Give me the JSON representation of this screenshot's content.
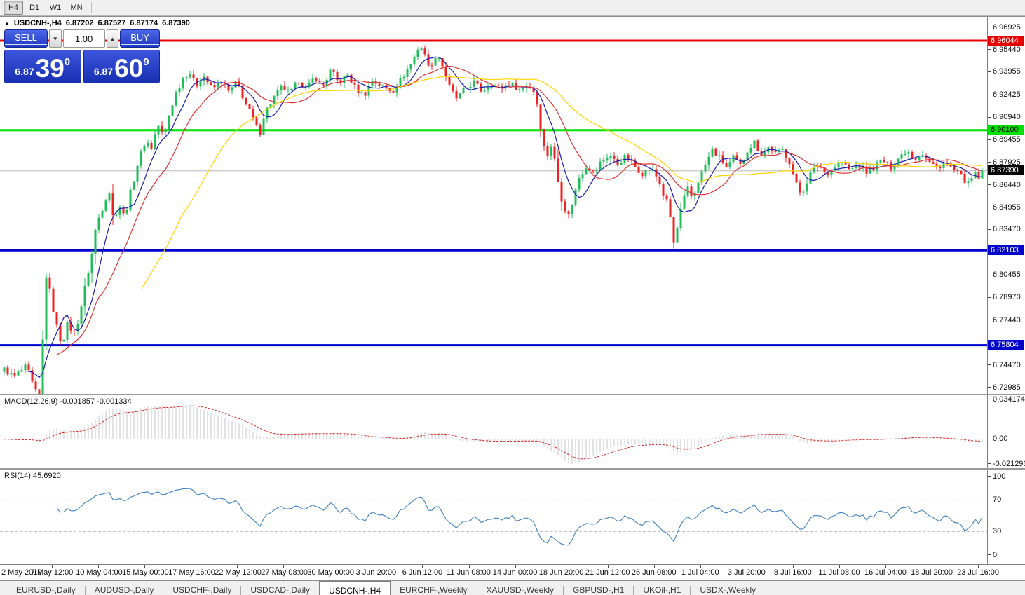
{
  "toolbar": {
    "timeframes": [
      "H4",
      "D1",
      "W1",
      "MN"
    ],
    "active": "H4"
  },
  "chart": {
    "title": {
      "symbol_tf": "USDCNH-,H4",
      "open": "6.87202",
      "high": "6.87527",
      "low": "6.87174",
      "close": "6.87390"
    },
    "trade_panel": {
      "sell_label": "SELL",
      "buy_label": "BUY",
      "volume": "1.00",
      "sell_price": {
        "prefix": "6.87",
        "main": "39",
        "sup": "0"
      },
      "buy_price": {
        "prefix": "6.87",
        "main": "60",
        "sup": "9"
      }
    },
    "price_axis": {
      "ticks": [
        "6.96925",
        "6.95440",
        "6.93955",
        "6.92425",
        "6.90940",
        "6.89455",
        "6.87925",
        "6.86440",
        "6.84955",
        "6.83470",
        "6.80455",
        "6.78970",
        "6.77440",
        "6.74470",
        "6.72985"
      ],
      "levels": [
        {
          "text": "6.96044",
          "price": 6.96044,
          "bg": "#e60000",
          "fg": "#ffffff"
        },
        {
          "text": "6.90100",
          "price": 6.901,
          "bg": "#00e000",
          "fg": "#000000"
        },
        {
          "text": "6.82103",
          "price": 6.82103,
          "bg": "#0000cc",
          "fg": "#ffffff"
        },
        {
          "text": "6.75804",
          "price": 6.75804,
          "bg": "#0000cc",
          "fg": "#ffffff"
        }
      ],
      "current": {
        "text": "6.87390",
        "price": 6.8739,
        "bg": "#000000",
        "fg": "#ffffff"
      }
    }
  },
  "indicators": {
    "macd": {
      "label": "MACD(12,26,9)",
      "values": "-0.001857 -0.001334",
      "axis": [
        {
          "text": "0.034174",
          "v": 0.034174
        },
        {
          "text": "0.00",
          "v": 0
        },
        {
          "text": "-0.021296",
          "v": -0.021296
        }
      ],
      "max": 0.034174,
      "min": -0.021296
    },
    "rsi": {
      "label": "RSI(14)",
      "value": "45.6920",
      "axis": [
        {
          "text": "100",
          "v": 100
        },
        {
          "text": "70",
          "v": 70
        },
        {
          "text": "30",
          "v": 30
        },
        {
          "text": "0",
          "v": 0
        }
      ],
      "levels": [
        70,
        30
      ]
    }
  },
  "tabs": {
    "active": "USDCNH-,H4",
    "items": [
      "EURUSD-,Daily",
      "AUDUSD-,Daily",
      "USDCHF-,Daily",
      "USDCAD-,Daily",
      "USDCNH-,H4",
      "EURCHF-,Weekly",
      "XAUUSD-,Weekly",
      "GBPUSD-,H1",
      "UKOil-,H1",
      "USDX-,Weekly"
    ]
  },
  "chart_data": {
    "type": "candlestick",
    "symbol": "USDCNH",
    "timeframe": "H4",
    "current_bar": {
      "open": 6.87202,
      "high": 6.87527,
      "low": 6.87174,
      "close": 6.8739
    },
    "price_range": [
      6.7285,
      6.9735
    ],
    "bars": 280,
    "candle_colors": {
      "up": "#1fbe5a",
      "down": "#ee2222"
    },
    "horizontal_levels": [
      {
        "price": 6.96044,
        "color": "#e60000",
        "width": 3
      },
      {
        "price": 6.901,
        "color": "#00e000",
        "width": 3
      },
      {
        "price": 6.82103,
        "color": "#0000cc",
        "width": 3
      },
      {
        "price": 6.75804,
        "color": "#0000cc",
        "width": 3
      }
    ],
    "current_price_line": {
      "price": 6.8739,
      "color": "#b8b8b8"
    },
    "moving_averages": [
      {
        "period": 7,
        "color": "#1a1ab4"
      },
      {
        "period": 16,
        "color": "#e03030"
      },
      {
        "period": 40,
        "color": "#ffd400"
      }
    ],
    "indicators": [
      {
        "name": "MACD",
        "params": [
          12,
          26,
          9
        ],
        "last_main": -0.001857,
        "last_signal": -0.001334,
        "scale_max": 0.034174,
        "scale_min": -0.021296,
        "histogram_color": "#c4c4c4",
        "signal_color": "#dd2222"
      },
      {
        "name": "RSI",
        "params": [
          14
        ],
        "last": 45.692,
        "levels": [
          30,
          70
        ],
        "line_color": "#3c7fc0"
      }
    ],
    "time_labels": [
      "2 May 2019",
      "7 May 12:00",
      "10 May 04:00",
      "15 May 00:00",
      "17 May 16:00",
      "22 May 12:00",
      "27 May 08:00",
      "30 May 00:00",
      "3 Jun 20:00",
      "6 Jun 12:00",
      "11 Jun 08:00",
      "14 Jun 00:00",
      "18 Jun 20:00",
      "21 Jun 12:00",
      "26 Jun 08:00",
      "1 Jul 04:00",
      "3 Jul 20:00",
      "8 Jul 16:00",
      "11 Jul 08:00",
      "16 Jul 04:00",
      "18 Jul 20:00",
      "23 Jul 16:00"
    ],
    "price_path": [
      [
        0.0,
        6.742
      ],
      [
        0.01,
        6.737
      ],
      [
        0.023,
        6.744
      ],
      [
        0.031,
        6.728
      ],
      [
        0.036,
        6.724
      ],
      [
        0.039,
        6.748
      ],
      [
        0.041,
        6.81
      ],
      [
        0.046,
        6.796
      ],
      [
        0.053,
        6.772
      ],
      [
        0.059,
        6.758
      ],
      [
        0.064,
        6.772
      ],
      [
        0.072,
        6.766
      ],
      [
        0.077,
        6.778
      ],
      [
        0.083,
        6.798
      ],
      [
        0.089,
        6.816
      ],
      [
        0.094,
        6.838
      ],
      [
        0.102,
        6.852
      ],
      [
        0.107,
        6.862
      ],
      [
        0.112,
        6.84
      ],
      [
        0.117,
        6.852
      ],
      [
        0.123,
        6.843
      ],
      [
        0.13,
        6.862
      ],
      [
        0.137,
        6.88
      ],
      [
        0.145,
        6.895
      ],
      [
        0.15,
        6.888
      ],
      [
        0.157,
        6.905
      ],
      [
        0.163,
        6.896
      ],
      [
        0.169,
        6.912
      ],
      [
        0.175,
        6.925
      ],
      [
        0.182,
        6.935
      ],
      [
        0.189,
        6.94
      ],
      [
        0.196,
        6.93
      ],
      [
        0.203,
        6.938
      ],
      [
        0.213,
        6.928
      ],
      [
        0.222,
        6.934
      ],
      [
        0.23,
        6.926
      ],
      [
        0.238,
        6.933
      ],
      [
        0.246,
        6.92
      ],
      [
        0.255,
        6.908
      ],
      [
        0.261,
        6.898
      ],
      [
        0.266,
        6.912
      ],
      [
        0.275,
        6.922
      ],
      [
        0.284,
        6.93
      ],
      [
        0.292,
        6.925
      ],
      [
        0.301,
        6.934
      ],
      [
        0.309,
        6.928
      ],
      [
        0.318,
        6.937
      ],
      [
        0.325,
        6.929
      ],
      [
        0.334,
        6.941
      ],
      [
        0.342,
        6.932
      ],
      [
        0.351,
        6.938
      ],
      [
        0.359,
        6.929
      ],
      [
        0.368,
        6.924
      ],
      [
        0.376,
        6.934
      ],
      [
        0.387,
        6.93
      ],
      [
        0.397,
        6.927
      ],
      [
        0.407,
        6.936
      ],
      [
        0.417,
        6.946
      ],
      [
        0.425,
        6.958
      ],
      [
        0.431,
        6.949
      ],
      [
        0.437,
        6.942
      ],
      [
        0.442,
        6.953
      ],
      [
        0.448,
        6.944
      ],
      [
        0.455,
        6.93
      ],
      [
        0.462,
        6.922
      ],
      [
        0.471,
        6.928
      ],
      [
        0.48,
        6.933
      ],
      [
        0.488,
        6.927
      ],
      [
        0.497,
        6.932
      ],
      [
        0.507,
        6.929
      ],
      [
        0.517,
        6.932
      ],
      [
        0.527,
        6.928
      ],
      [
        0.535,
        6.931
      ],
      [
        0.543,
        6.926
      ],
      [
        0.548,
        6.905
      ],
      [
        0.554,
        6.882
      ],
      [
        0.56,
        6.892
      ],
      [
        0.566,
        6.868
      ],
      [
        0.571,
        6.852
      ],
      [
        0.577,
        6.844
      ],
      [
        0.583,
        6.858
      ],
      [
        0.588,
        6.87
      ],
      [
        0.596,
        6.878
      ],
      [
        0.603,
        6.872
      ],
      [
        0.61,
        6.88
      ],
      [
        0.619,
        6.885
      ],
      [
        0.627,
        6.878
      ],
      [
        0.636,
        6.884
      ],
      [
        0.644,
        6.877
      ],
      [
        0.653,
        6.872
      ],
      [
        0.661,
        6.876
      ],
      [
        0.669,
        6.868
      ],
      [
        0.674,
        6.858
      ],
      [
        0.68,
        6.85
      ],
      [
        0.684,
        6.824
      ],
      [
        0.689,
        6.838
      ],
      [
        0.693,
        6.852
      ],
      [
        0.699,
        6.862
      ],
      [
        0.704,
        6.855
      ],
      [
        0.71,
        6.868
      ],
      [
        0.717,
        6.878
      ],
      [
        0.724,
        6.888
      ],
      [
        0.732,
        6.882
      ],
      [
        0.739,
        6.876
      ],
      [
        0.746,
        6.883
      ],
      [
        0.753,
        6.877
      ],
      [
        0.76,
        6.888
      ],
      [
        0.767,
        6.893
      ],
      [
        0.775,
        6.884
      ],
      [
        0.782,
        6.89
      ],
      [
        0.789,
        6.885
      ],
      [
        0.796,
        6.888
      ],
      [
        0.803,
        6.88
      ],
      [
        0.809,
        6.866
      ],
      [
        0.815,
        6.858
      ],
      [
        0.82,
        6.866
      ],
      [
        0.826,
        6.874
      ],
      [
        0.833,
        6.878
      ],
      [
        0.84,
        6.872
      ],
      [
        0.848,
        6.876
      ],
      [
        0.856,
        6.88
      ],
      [
        0.865,
        6.874
      ],
      [
        0.873,
        6.878
      ],
      [
        0.882,
        6.873
      ],
      [
        0.89,
        6.877
      ],
      [
        0.898,
        6.881
      ],
      [
        0.906,
        6.876
      ],
      [
        0.915,
        6.883
      ],
      [
        0.923,
        6.888
      ],
      [
        0.931,
        6.882
      ],
      [
        0.938,
        6.886
      ],
      [
        0.945,
        6.88
      ],
      [
        0.954,
        6.876
      ],
      [
        0.962,
        6.88
      ],
      [
        0.971,
        6.874
      ],
      [
        0.979,
        6.87
      ],
      [
        0.986,
        6.865
      ],
      [
        0.992,
        6.872
      ],
      [
        0.996,
        6.869
      ],
      [
        1.0,
        6.8739
      ]
    ]
  }
}
